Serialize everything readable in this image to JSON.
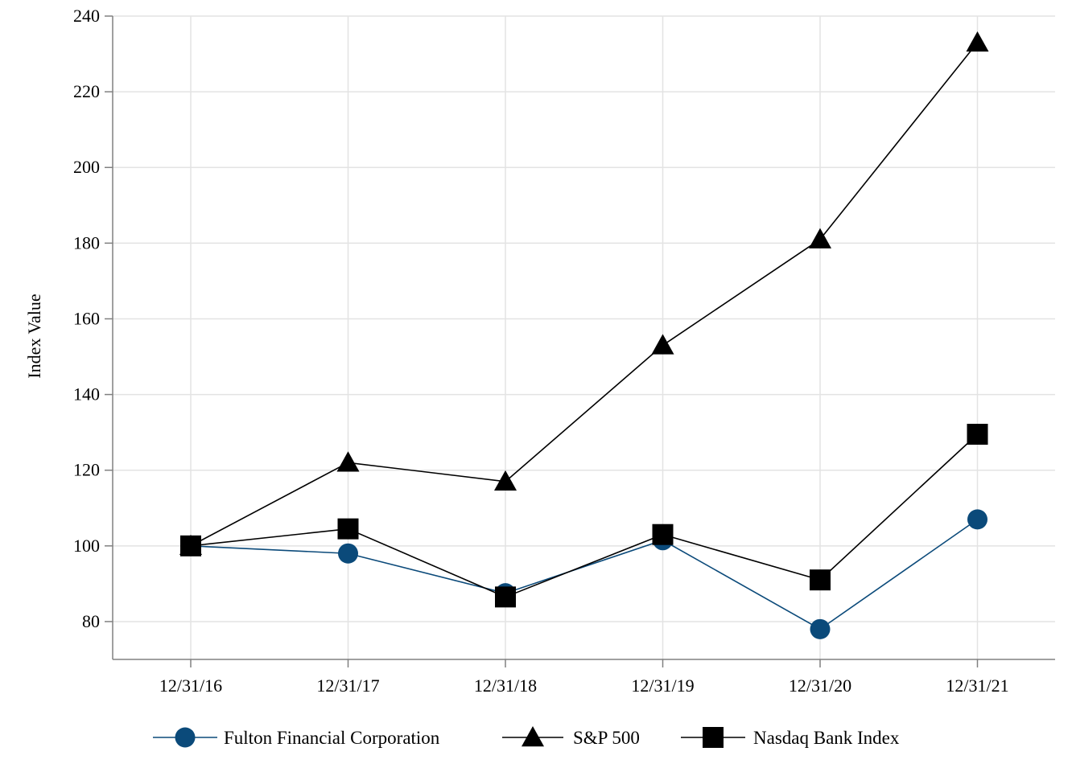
{
  "chart_data": {
    "type": "line",
    "title": "",
    "xlabel": "",
    "ylabel": "Index Value",
    "categories": [
      "12/31/16",
      "12/31/17",
      "12/31/18",
      "12/31/19",
      "12/31/20",
      "12/31/21"
    ],
    "ylim": [
      70,
      240
    ],
    "yticks": [
      80,
      100,
      120,
      140,
      160,
      180,
      200,
      220,
      240
    ],
    "grid": true,
    "legend_position": "bottom",
    "series": [
      {
        "name": "Fulton Financial Corporation",
        "marker": "circle",
        "color": "#0b4a7a",
        "values": [
          100,
          98,
          87.5,
          101.5,
          78,
          107
        ]
      },
      {
        "name": "S&P 500",
        "marker": "triangle",
        "color": "#000000",
        "values": [
          100,
          122,
          117,
          153,
          181,
          233
        ]
      },
      {
        "name": "Nasdaq Bank Index",
        "marker": "square",
        "color": "#000000",
        "values": [
          100,
          104.5,
          86.5,
          103,
          91,
          129.5
        ]
      }
    ]
  }
}
